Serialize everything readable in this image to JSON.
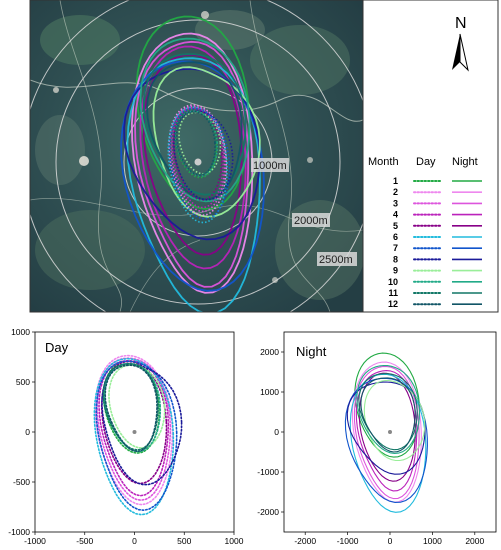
{
  "map": {
    "north_label": "N",
    "ring_labels": [
      "1000m",
      "2000m",
      "2500m"
    ],
    "legend": {
      "headers": [
        "Month",
        "Day",
        "Night"
      ],
      "months": [
        "1",
        "2",
        "3",
        "4",
        "5",
        "6",
        "7",
        "8",
        "9",
        "10",
        "11",
        "12"
      ],
      "colors": [
        "#22aa44",
        "#ee88ee",
        "#dd55dd",
        "#bb22bb",
        "#880088",
        "#22bbdd",
        "#1155cc",
        "#1a1a99",
        "#99ee99",
        "#22aa88",
        "#117766",
        "#115566"
      ]
    }
  },
  "chart_data": [
    {
      "type": "line",
      "panel_label": "Day",
      "xlim": [
        -1000,
        1000
      ],
      "ylim": [
        -1000,
        1000
      ],
      "xticks": [
        -1000,
        -500,
        0,
        500,
        1000
      ],
      "yticks": [
        -1000,
        -500,
        0,
        500,
        1000
      ],
      "line_style": "dotted",
      "center": [
        0,
        0
      ],
      "series": [
        {
          "month": "1",
          "color": "#22aa44",
          "x_extent": [
            -300,
            250
          ],
          "y_extent": [
            -200,
            720
          ]
        },
        {
          "month": "2",
          "color": "#ee88ee",
          "x_extent": [
            -380,
            380
          ],
          "y_extent": [
            -700,
            790
          ]
        },
        {
          "month": "3",
          "color": "#dd55dd",
          "x_extent": [
            -360,
            360
          ],
          "y_extent": [
            -650,
            770
          ]
        },
        {
          "month": "4",
          "color": "#bb22bb",
          "x_extent": [
            -340,
            340
          ],
          "y_extent": [
            -600,
            750
          ]
        },
        {
          "month": "5",
          "color": "#880088",
          "x_extent": [
            -320,
            320
          ],
          "y_extent": [
            -500,
            720
          ]
        },
        {
          "month": "6",
          "color": "#22bbdd",
          "x_extent": [
            -390,
            390
          ],
          "y_extent": [
            -800,
            760
          ]
        },
        {
          "month": "7",
          "color": "#1155cc",
          "x_extent": [
            -370,
            420
          ],
          "y_extent": [
            -750,
            740
          ]
        },
        {
          "month": "8",
          "color": "#1a1a99",
          "x_extent": [
            -320,
            460
          ],
          "y_extent": [
            -500,
            700
          ]
        },
        {
          "month": "9",
          "color": "#99ee99",
          "x_extent": [
            -250,
            300
          ],
          "y_extent": [
            -150,
            680
          ]
        },
        {
          "month": "10",
          "color": "#22aa88",
          "x_extent": [
            -290,
            260
          ],
          "y_extent": [
            -180,
            700
          ]
        },
        {
          "month": "11",
          "color": "#117766",
          "x_extent": [
            -300,
            240
          ],
          "y_extent": [
            -160,
            700
          ]
        },
        {
          "month": "12",
          "color": "#115566",
          "x_extent": [
            -280,
            230
          ],
          "y_extent": [
            -170,
            690
          ]
        }
      ]
    },
    {
      "type": "line",
      "panel_label": "Night",
      "xlim": [
        -2500,
        2500
      ],
      "ylim": [
        -2500,
        2500
      ],
      "xticks": [
        -2000,
        -1000,
        0,
        1000,
        2000
      ],
      "yticks": [
        -2000,
        -1000,
        0,
        1000,
        2000
      ],
      "line_style": "solid",
      "center": [
        0,
        0
      ],
      "series": [
        {
          "month": "1",
          "color": "#22aa44",
          "x_extent": [
            -800,
            700
          ],
          "y_extent": [
            -600,
            2000
          ]
        },
        {
          "month": "2",
          "color": "#ee88ee",
          "x_extent": [
            -850,
            750
          ],
          "y_extent": [
            -1700,
            1800
          ]
        },
        {
          "month": "3",
          "color": "#dd55dd",
          "x_extent": [
            -800,
            700
          ],
          "y_extent": [
            -1600,
            1700
          ]
        },
        {
          "month": "4",
          "color": "#bb22bb",
          "x_extent": [
            -750,
            650
          ],
          "y_extent": [
            -1400,
            1600
          ]
        },
        {
          "month": "5",
          "color": "#880088",
          "x_extent": [
            -700,
            600
          ],
          "y_extent": [
            -1200,
            1500
          ]
        },
        {
          "month": "6",
          "color": "#22bbdd",
          "x_extent": [
            -900,
            850
          ],
          "y_extent": [
            -1950,
            1500
          ]
        },
        {
          "month": "7",
          "color": "#1155cc",
          "x_extent": [
            -1000,
            900
          ],
          "y_extent": [
            -1700,
            1400
          ]
        },
        {
          "month": "8",
          "color": "#1a1a99",
          "x_extent": [
            -950,
            850
          ],
          "y_extent": [
            -1000,
            1300
          ]
        },
        {
          "month": "9",
          "color": "#99ee99",
          "x_extent": [
            -600,
            800
          ],
          "y_extent": [
            -700,
            1300
          ]
        },
        {
          "month": "10",
          "color": "#22aa88",
          "x_extent": [
            -750,
            700
          ],
          "y_extent": [
            -500,
            1700
          ]
        },
        {
          "month": "11",
          "color": "#117766",
          "x_extent": [
            -700,
            650
          ],
          "y_extent": [
            -400,
            1500
          ]
        },
        {
          "month": "12",
          "color": "#115566",
          "x_extent": [
            -650,
            600
          ],
          "y_extent": [
            -450,
            1400
          ]
        }
      ]
    }
  ]
}
